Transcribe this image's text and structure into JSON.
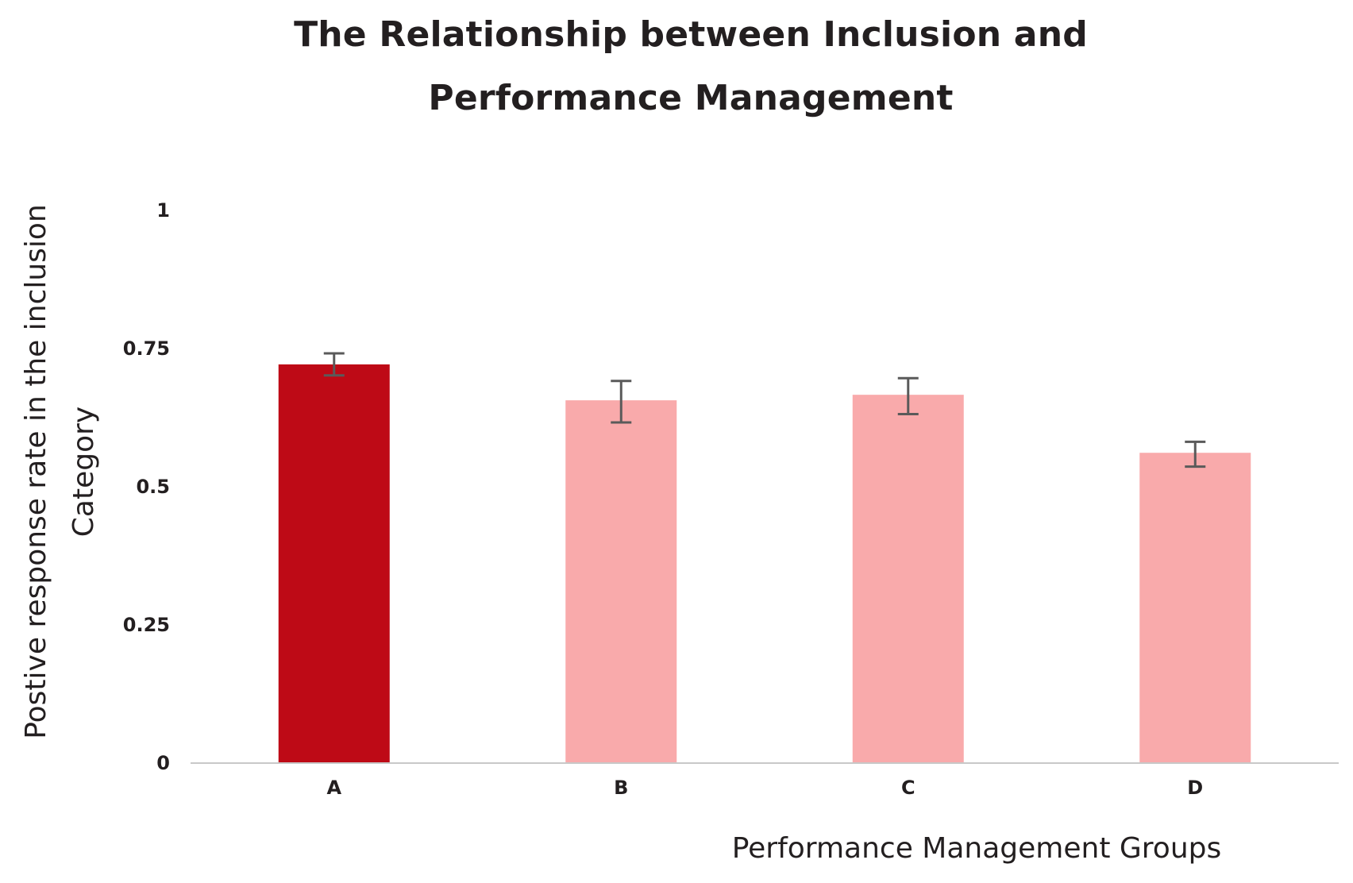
{
  "chart_data": {
    "type": "bar",
    "title_lines": [
      "The Relationship between Inclusion and",
      "Performance Management"
    ],
    "xlabel": "Performance Management Groups",
    "ylabel_lines": [
      "Postive response rate in the inclusion",
      "Category"
    ],
    "categories": [
      "A",
      "B",
      "C",
      "D"
    ],
    "values": [
      0.72,
      0.655,
      0.665,
      0.56
    ],
    "error_low": [
      0.7,
      0.615,
      0.63,
      0.535
    ],
    "error_high": [
      0.74,
      0.69,
      0.695,
      0.58
    ],
    "ylim": [
      0,
      1
    ],
    "yticks": [
      0,
      0.25,
      0.5,
      0.75,
      1
    ],
    "ytick_labels": [
      "0",
      "0.25",
      "0.5",
      "0.75",
      "1"
    ],
    "bar_colors": [
      "#be0a16",
      "#f9aaab",
      "#f9aaab",
      "#f9aaab"
    ],
    "error_bar_color": "#5a5a5a",
    "axis_color": "#c8c8c8",
    "grid": false,
    "legend": "none"
  }
}
